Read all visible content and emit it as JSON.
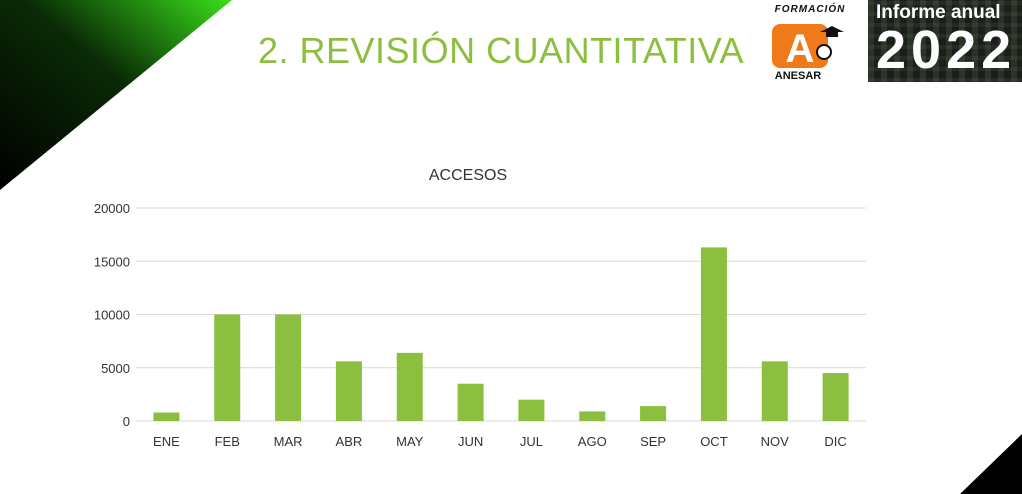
{
  "slide": {
    "title": "2. REVISIÓN CUANTITATIVA"
  },
  "logo": {
    "top_text": "FORMACIÓN",
    "letter": "A",
    "bottom_text": "ANESAR"
  },
  "badge": {
    "line1": "Informe anual",
    "line2": "2022"
  },
  "colors": {
    "accent": "#8cbf3f",
    "logo_orange": "#f07a1a",
    "corner_green": "#39e01a",
    "corner_black": "#000000"
  },
  "chart_data": {
    "type": "bar",
    "title": "ACCESOS",
    "categories": [
      "ENE",
      "FEB",
      "MAR",
      "ABR",
      "MAY",
      "JUN",
      "JUL",
      "AGO",
      "SEP",
      "OCT",
      "NOV",
      "DIC"
    ],
    "values": [
      800,
      10000,
      10000,
      5600,
      6400,
      3500,
      2000,
      900,
      1400,
      16300,
      5600,
      4500
    ],
    "yticks": [
      0,
      5000,
      10000,
      15000,
      20000
    ],
    "ylim": [
      0,
      20000
    ],
    "grid": true,
    "legend": "none",
    "bar_color": "#8cbf3f"
  }
}
